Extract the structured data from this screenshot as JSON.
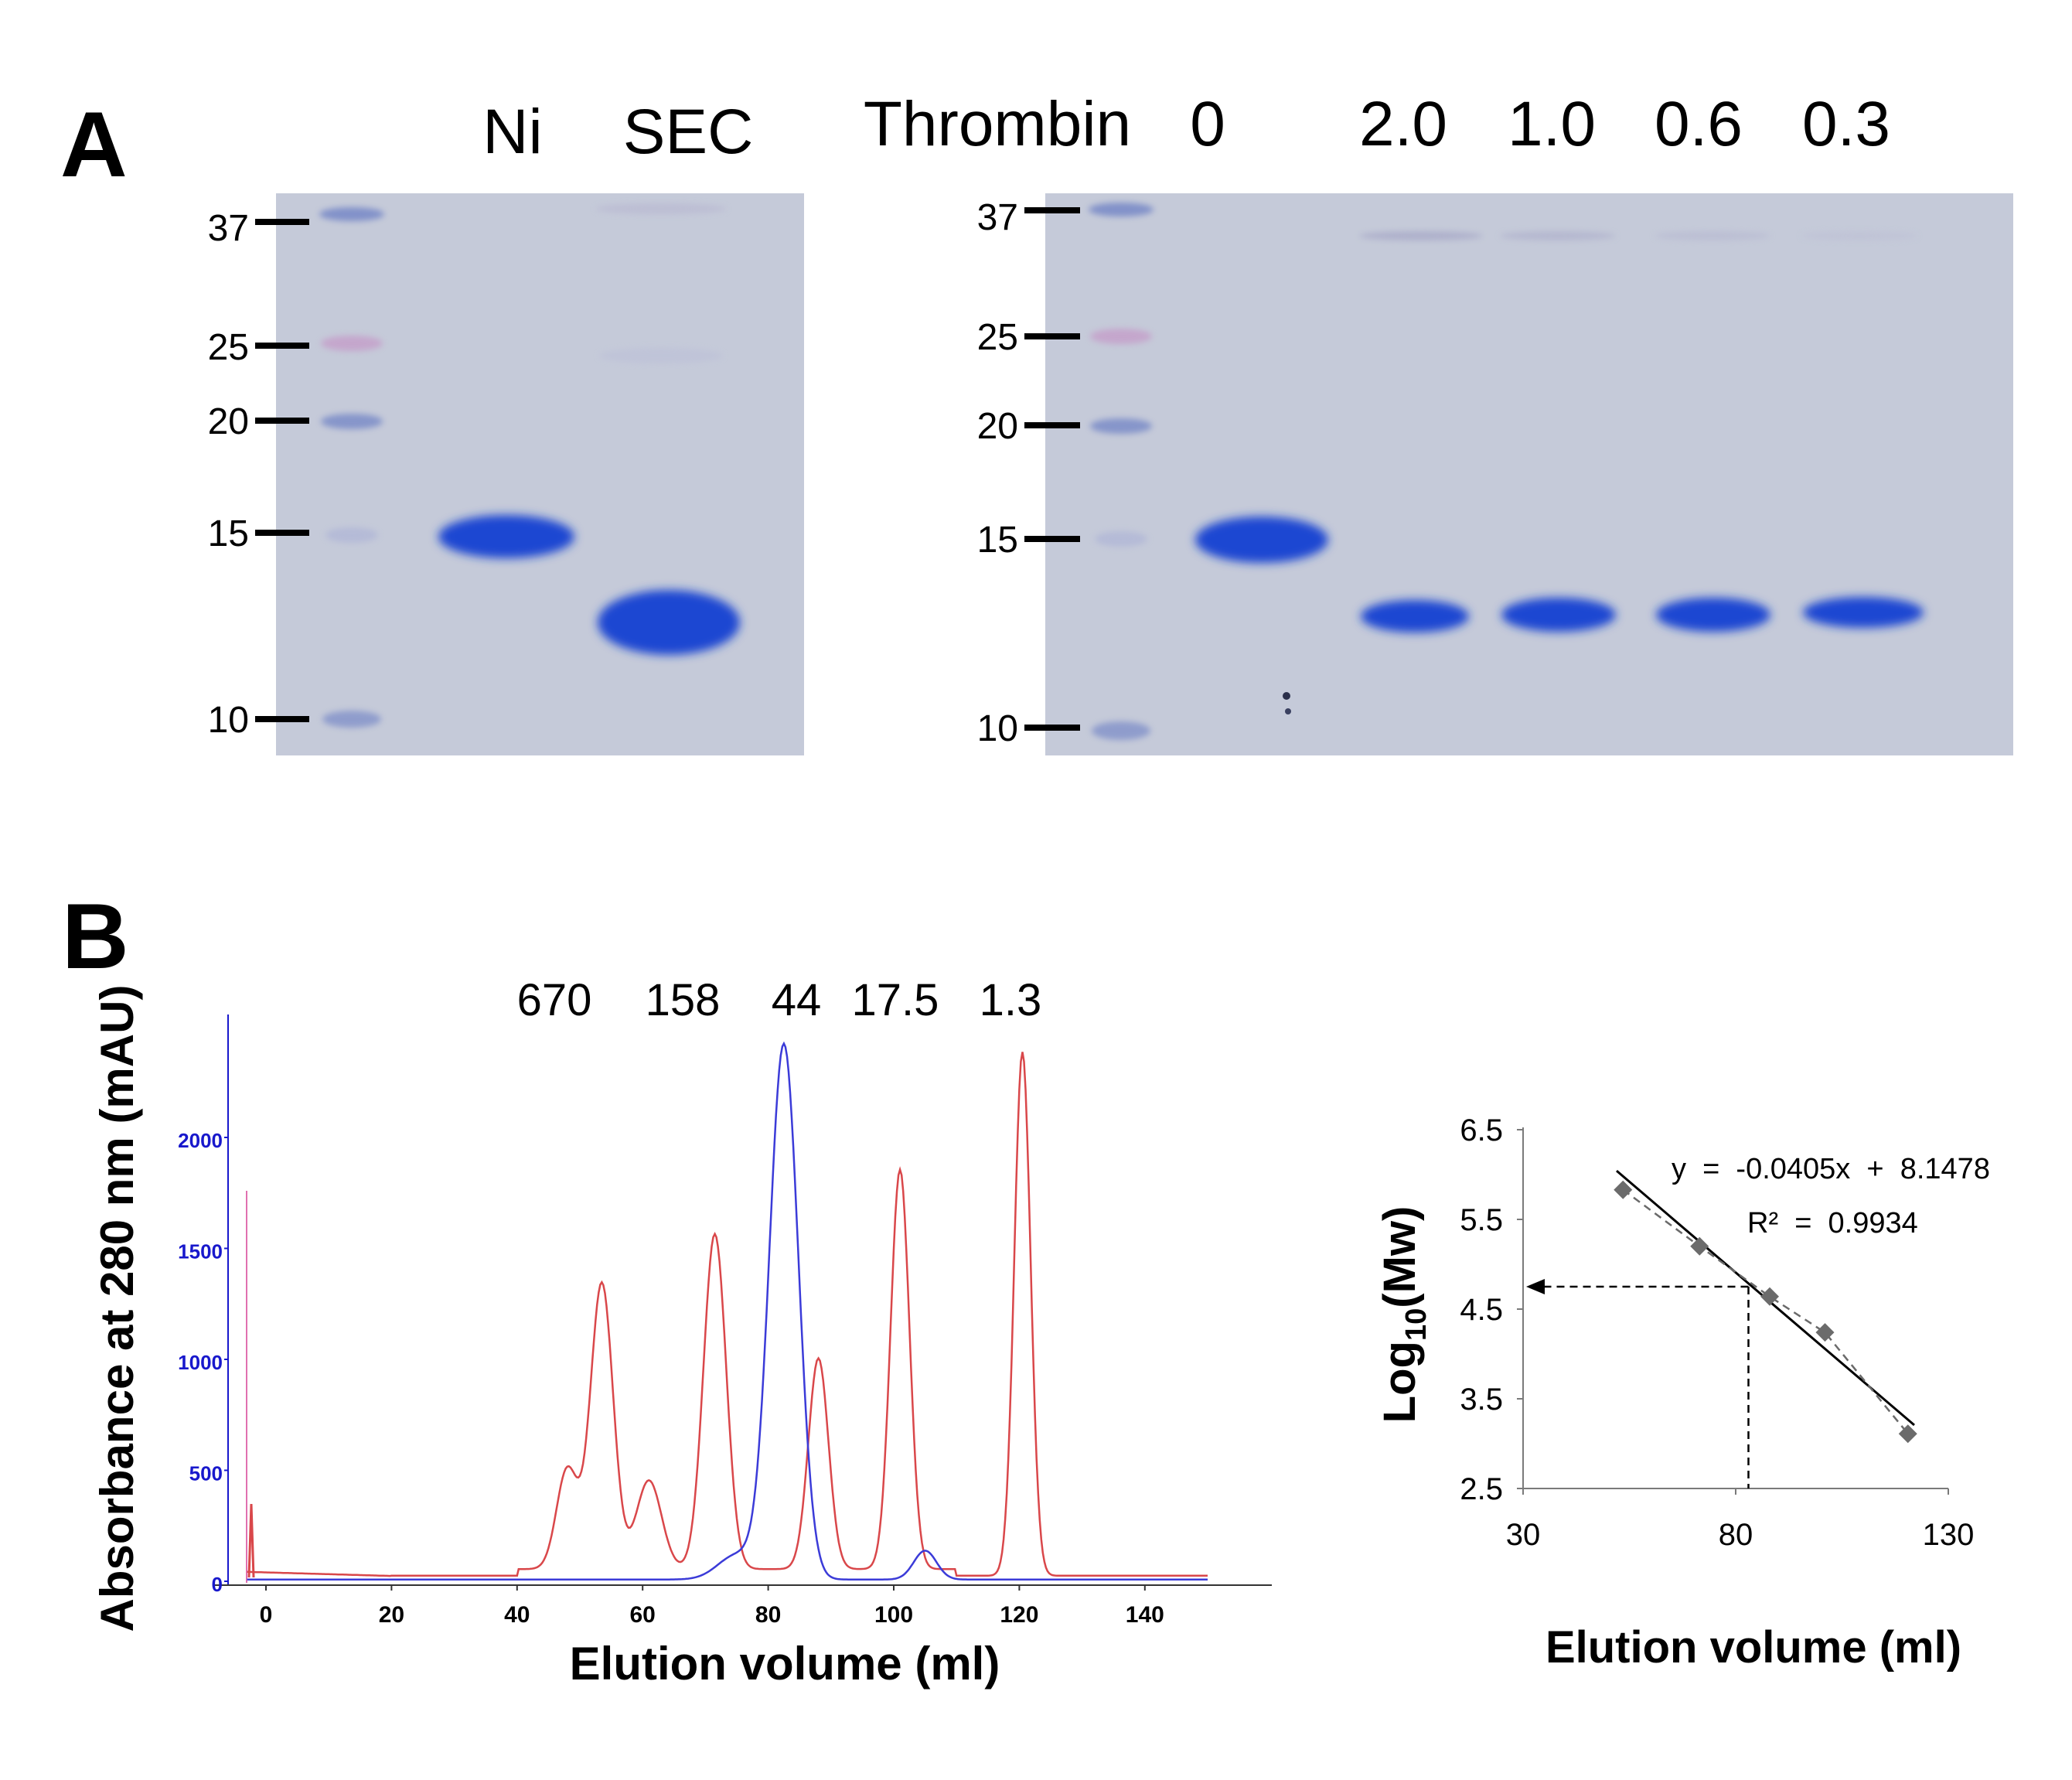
{
  "panelA": {
    "label": "A",
    "gel1": {
      "lanes": [
        "Ni",
        "SEC"
      ],
      "markers": [
        "37",
        "25",
        "20",
        "15",
        "10"
      ]
    },
    "gel2": {
      "row_label": "Thrombin",
      "lanes": [
        "0",
        "2.0",
        "1.0",
        "0.6",
        "0.3"
      ],
      "markers": [
        "37",
        "25",
        "20",
        "15",
        "10"
      ]
    },
    "colors": {
      "gel_bg": "#c5cad9",
      "band": "#1e46d2",
      "ladder": "#6c7fc4",
      "ladder_pink": "#c58fc4"
    }
  },
  "panelB": {
    "label": "B",
    "chromatogram": {
      "ylabel": "Absorbance at 280 nm (mAU)",
      "xlabel": "Elution volume (ml)",
      "yticks": [
        "0",
        "500",
        "1000",
        "1500",
        "2000"
      ],
      "xticks": [
        "0",
        "20",
        "40",
        "60",
        "80",
        "100",
        "120",
        "140"
      ],
      "standards": [
        "670",
        "158",
        "44",
        "17.5",
        "1.3"
      ],
      "colors": {
        "standards_trace": "#d9474a",
        "sample_trace": "#3b3bd8",
        "axis_left": "#1818cc",
        "tick_text": "#1818cc"
      }
    },
    "calibration": {
      "ylabel_main": "Log",
      "ylabel_sub": "10",
      "ylabel_tail": "(Mw)",
      "xlabel": "Elution volume (ml)",
      "yticks": [
        "2.5",
        "3.5",
        "4.5",
        "5.5",
        "6.5"
      ],
      "xticks": [
        "30",
        "80",
        "130"
      ],
      "equation": "y  =  -0.0405x  +  8.1478",
      "r_squared": "R²  =  0.9934"
    }
  },
  "chart_data": [
    {
      "type": "line",
      "xlabel": "Elution volume (ml)",
      "ylabel": "Absorbance at 280 nm (mAU)",
      "xlim": [
        -5,
        150
      ],
      "ylim": [
        0,
        2450
      ],
      "annotations": [
        "670",
        "158",
        "44",
        "17.5",
        "1.3"
      ],
      "series": [
        {
          "color": "#d9474a",
          "peaks": [
            [
              48,
              450
            ],
            [
              53.5,
              1290
            ],
            [
              61,
              400
            ],
            [
              71.5,
              1510
            ],
            [
              88,
              950
            ],
            [
              101,
              1800
            ],
            [
              120.5,
              2360
            ]
          ]
        },
        {
          "color": "#3b3bd8",
          "peaks": [
            [
              75,
              110
            ],
            [
              82.5,
              2410
            ],
            [
              105,
              130
            ]
          ]
        }
      ]
    },
    {
      "type": "scatter",
      "xlabel": "Elution volume (ml)",
      "ylabel": "Log10(Mw)",
      "xlim": [
        30,
        130
      ],
      "ylim": [
        2.5,
        6.5
      ],
      "points": [
        [
          53.5,
          5.83
        ],
        [
          71.5,
          5.2
        ],
        [
          88,
          4.64
        ],
        [
          101,
          4.24
        ],
        [
          120.5,
          3.11
        ]
      ],
      "fit": {
        "slope": -0.0405,
        "intercept": 8.1478,
        "r2": 0.9934
      },
      "readout": {
        "x": 83,
        "y": 4.75
      }
    }
  ]
}
